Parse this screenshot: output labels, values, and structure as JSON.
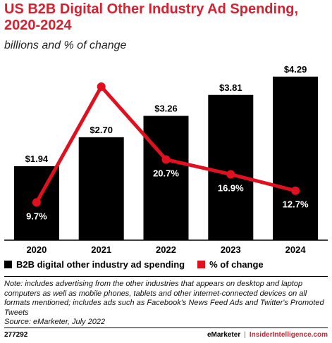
{
  "title": "US B2B Digital Other Industry Ad Spending, 2020-2024",
  "subtitle": "billions and % of change",
  "colors": {
    "bar": "#000000",
    "line": "#e0101f",
    "title": "#d8202f"
  },
  "chart_data": {
    "type": "bar",
    "categories": [
      "2020",
      "2021",
      "2022",
      "2023",
      "2024"
    ],
    "series": [
      {
        "name": "B2B digital other industry ad spending",
        "type": "bar",
        "values": [
          1.94,
          2.7,
          3.26,
          3.81,
          4.29
        ],
        "labels": [
          "$1.94",
          "$2.70",
          "$3.26",
          "$3.81",
          "$4.29"
        ]
      },
      {
        "name": "% of change",
        "type": "line",
        "values": [
          9.7,
          39.4,
          20.7,
          16.9,
          12.7
        ],
        "labels": [
          "9.7%",
          "39.4%",
          "20.7%",
          "16.9%",
          "12.7%"
        ]
      }
    ],
    "ylim_bar": [
      0,
      4.6
    ],
    "ylim_line": [
      0,
      45
    ],
    "grid": false,
    "legend_position": "bottom-left"
  },
  "note": "Note: includes advertising from the other industries that appears on desktop and laptop computers as well as mobile phones, tablets and other internet-connected devices on all formats mentioned; includes ads such as Facebook's News Feed Ads and Twitter's Promoted Tweets",
  "source": "Source: eMarketer, July 2022",
  "footer": {
    "id": "277292",
    "brand1": "eMarketer",
    "separator": "|",
    "brand2": "InsiderIntelligence.com"
  }
}
